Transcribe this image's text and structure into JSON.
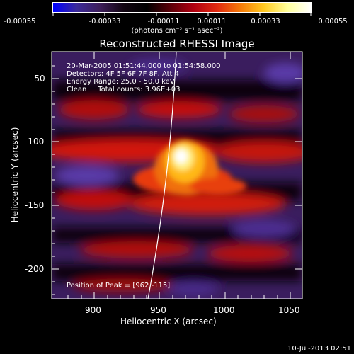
{
  "colorbar": {
    "tick_labels": [
      "-0.00055",
      "-0.00033",
      "-0.00011",
      "0.00011",
      "0.00033",
      "0.00055"
    ],
    "unit_label": "(photons cm⁻² s⁻¹ asec⁻²)",
    "range": [
      -0.00055,
      0.00055
    ],
    "stops": [
      "#0000ff",
      "#3b2a9a",
      "#3d1e5a",
      "#120512",
      "#000000",
      "#5a0008",
      "#b00010",
      "#e22a10",
      "#f57a08",
      "#ffc820",
      "#ffff9a",
      "#ffffff"
    ]
  },
  "title": "Reconstructed RHESSI Image",
  "annotations": {
    "time_range": "20-Mar-2005 01:51:44.000 to 01:54:58.000",
    "detectors": "Detectors: 4F 5F 6F 7F 8F, Att 4",
    "energy": "Energy Range: 25.0 - 50.0 keV",
    "clean": "Clean     Total counts: 3.96E+03",
    "peak": "Position of Peak = [962,-115]"
  },
  "axes": {
    "x_title": "Heliocentric X (arcsec)",
    "y_title": "Heliocentric Y (arcsec)",
    "x_ticks": [
      "900",
      "950",
      "1000",
      "1050"
    ],
    "y_ticks": [
      "-50",
      "-100",
      "-150",
      "-200"
    ],
    "x_range": [
      866,
      1058
    ],
    "y_range": [
      -222,
      -28
    ]
  },
  "footer": "10-Jul-2013 02:51"
}
